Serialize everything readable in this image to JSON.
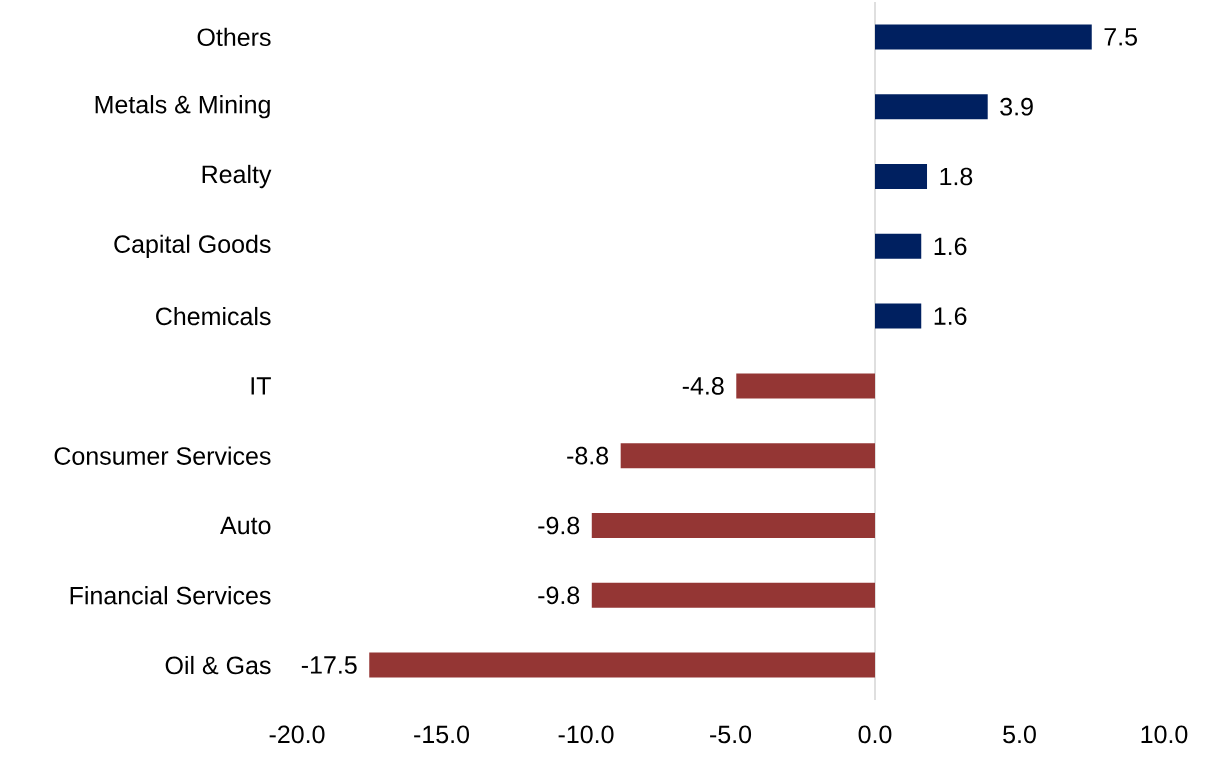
{
  "chart_data": {
    "type": "bar",
    "orientation": "horizontal",
    "categories": [
      "Others",
      "Metals & Mining",
      "Realty",
      "Capital Goods",
      "Chemicals",
      "IT",
      "Consumer Services",
      "Auto",
      "Financial Services",
      "Oil & Gas"
    ],
    "values": [
      7.5,
      3.9,
      1.8,
      1.6,
      1.6,
      -4.8,
      -8.8,
      -9.8,
      -9.8,
      -17.5
    ],
    "colors": [
      "#002060",
      "#002060",
      "#002060",
      "#002060",
      "#002060",
      "#943634",
      "#943634",
      "#943634",
      "#943634",
      "#943634"
    ],
    "xlim": [
      -20,
      10
    ],
    "xticks": [
      {
        "value": -20,
        "label": "-20.0"
      },
      {
        "value": -15,
        "label": "-15.0"
      },
      {
        "value": -10,
        "label": "-10.0"
      },
      {
        "value": -5,
        "label": "-5.0"
      },
      {
        "value": 0,
        "label": "0.0"
      },
      {
        "value": 5,
        "label": "5.0"
      },
      {
        "value": 10,
        "label": "10.0"
      }
    ],
    "data_labels": true
  }
}
